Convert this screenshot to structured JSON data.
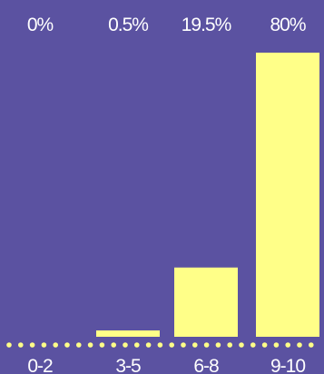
{
  "chart_data": {
    "type": "bar",
    "categories": [
      "0-2",
      "3-5",
      "6-8",
      "9-10"
    ],
    "values": [
      0,
      0.5,
      19.5,
      80
    ],
    "value_labels": [
      "0%",
      "0.5%",
      "19.5%",
      "80%"
    ],
    "title": "",
    "xlabel": "",
    "ylabel": "",
    "ylim": [
      0,
      80
    ],
    "grid": false,
    "legend": "none",
    "colors": {
      "background": "#5b52a1",
      "bar": "#ffff88",
      "text": "#ffffff",
      "baseline_dots": "#ffff88"
    }
  }
}
